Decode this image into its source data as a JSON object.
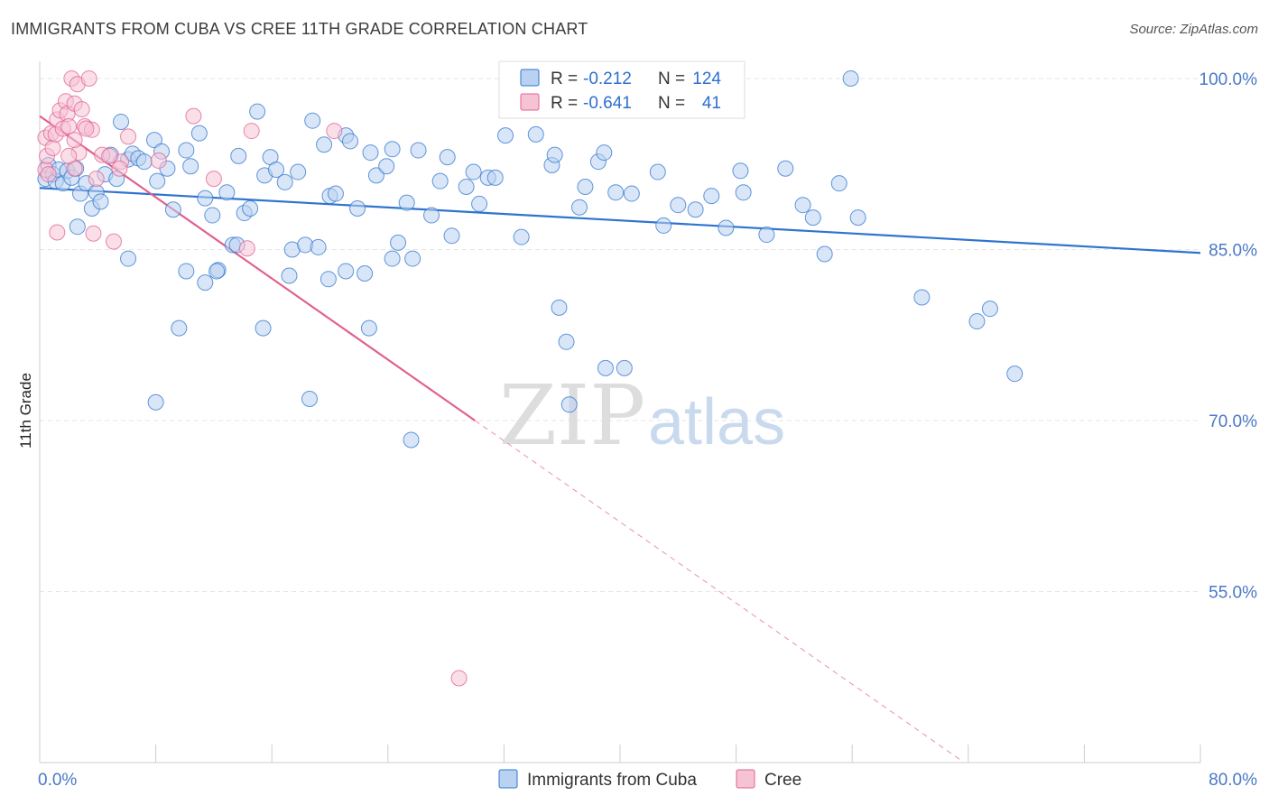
{
  "title": "IMMIGRANTS FROM CUBA VS CREE 11TH GRADE CORRELATION CHART",
  "source": "Source: ZipAtlas.com",
  "watermark": {
    "part1": "ZIP",
    "part2": "atlas"
  },
  "colors": {
    "blue": "#2f74d0",
    "blue_fill": "#b9d2f1",
    "pink": "#e2608f",
    "pink_fill": "#f6c3d5",
    "tick_text": "#4a78c8",
    "grid": "#e6e6e6"
  },
  "chart_data": {
    "type": "scatter",
    "title": "IMMIGRANTS FROM CUBA VS CREE 11TH GRADE CORRELATION CHART",
    "xlabel": "",
    "ylabel": "11th Grade",
    "xlim": [
      0,
      80
    ],
    "ylim": [
      40,
      101.5
    ],
    "x_ticks": [
      "0.0%",
      "80.0%"
    ],
    "y_ticks": [
      {
        "value": 100,
        "label": "100.0%"
      },
      {
        "value": 85,
        "label": "85.0%"
      },
      {
        "value": 70,
        "label": "70.0%"
      },
      {
        "value": 55,
        "label": "55.0%"
      }
    ],
    "grid": true,
    "legend": {
      "placement": "top-center",
      "entries": [
        {
          "r_label": "R =",
          "r": "-0.212",
          "n_label": "N =",
          "n": "124"
        },
        {
          "r_label": "R =",
          "r": "-0.641",
          "n_label": "N =",
          "n": "41"
        }
      ]
    },
    "series": [
      {
        "name": "Immigrants from Cuba",
        "color": "#2f74d0",
        "r": -0.212,
        "n": 124,
        "trend": {
          "x": [
            0,
            80
          ],
          "y": [
            90.4,
            84.7
          ]
        },
        "points": [
          [
            0.4,
            91.2
          ],
          [
            0.6,
            92.4
          ],
          [
            0.9,
            91.6
          ],
          [
            1.1,
            91.0
          ],
          [
            1.3,
            92.0
          ],
          [
            1.6,
            90.8
          ],
          [
            1.9,
            91.9
          ],
          [
            2.2,
            91.3
          ],
          [
            2.5,
            92.1
          ],
          [
            2.8,
            89.9
          ],
          [
            3.2,
            90.8
          ],
          [
            3.6,
            88.6
          ],
          [
            3.9,
            90.0
          ],
          [
            4.2,
            89.2
          ],
          [
            2.6,
            87.0
          ],
          [
            4.5,
            91.6
          ],
          [
            4.9,
            93.3
          ],
          [
            5.3,
            91.2
          ],
          [
            5.6,
            96.2
          ],
          [
            6.1,
            92.9
          ],
          [
            6.4,
            93.4
          ],
          [
            6.8,
            93.0
          ],
          [
            7.2,
            92.7
          ],
          [
            7.9,
            94.6
          ],
          [
            8.1,
            91.0
          ],
          [
            8.4,
            93.6
          ],
          [
            8.8,
            92.1
          ],
          [
            9.2,
            88.5
          ],
          [
            10.1,
            93.7
          ],
          [
            10.4,
            92.3
          ],
          [
            11.0,
            95.2
          ],
          [
            11.4,
            89.5
          ],
          [
            11.9,
            88.0
          ],
          [
            12.3,
            83.2
          ],
          [
            12.9,
            90.0
          ],
          [
            13.3,
            85.4
          ],
          [
            13.7,
            93.2
          ],
          [
            14.1,
            88.2
          ],
          [
            14.5,
            88.6
          ],
          [
            15.0,
            97.1
          ],
          [
            15.5,
            91.5
          ],
          [
            15.9,
            93.1
          ],
          [
            16.3,
            92.0
          ],
          [
            16.9,
            90.9
          ],
          [
            17.4,
            85.0
          ],
          [
            17.8,
            91.8
          ],
          [
            18.3,
            85.4
          ],
          [
            18.8,
            96.3
          ],
          [
            19.2,
            85.2
          ],
          [
            19.6,
            94.2
          ],
          [
            20.0,
            89.7
          ],
          [
            20.4,
            89.9
          ],
          [
            21.1,
            95.0
          ],
          [
            21.4,
            94.5
          ],
          [
            21.9,
            88.6
          ],
          [
            22.4,
            82.9
          ],
          [
            22.8,
            93.5
          ],
          [
            23.2,
            91.5
          ],
          [
            23.9,
            92.3
          ],
          [
            24.3,
            93.8
          ],
          [
            24.7,
            85.6
          ],
          [
            25.3,
            89.1
          ],
          [
            25.7,
            84.2
          ],
          [
            26.1,
            93.7
          ],
          [
            27.0,
            88.0
          ],
          [
            27.6,
            91.0
          ],
          [
            28.1,
            93.1
          ],
          [
            28.4,
            86.2
          ],
          [
            29.4,
            90.5
          ],
          [
            29.9,
            91.8
          ],
          [
            30.3,
            89.0
          ],
          [
            30.9,
            91.3
          ],
          [
            31.4,
            91.3
          ],
          [
            32.1,
            95.0
          ],
          [
            33.2,
            86.1
          ],
          [
            34.2,
            95.1
          ],
          [
            35.3,
            92.4
          ],
          [
            35.5,
            93.3
          ],
          [
            35.8,
            79.9
          ],
          [
            36.3,
            76.9
          ],
          [
            37.2,
            88.7
          ],
          [
            37.6,
            90.5
          ],
          [
            38.5,
            92.7
          ],
          [
            38.9,
            93.5
          ],
          [
            39.0,
            74.6
          ],
          [
            39.7,
            90.0
          ],
          [
            40.8,
            89.9
          ],
          [
            42.6,
            91.8
          ],
          [
            43.0,
            87.1
          ],
          [
            44.0,
            88.9
          ],
          [
            45.2,
            88.5
          ],
          [
            46.3,
            89.7
          ],
          [
            47.3,
            86.9
          ],
          [
            48.3,
            91.9
          ],
          [
            48.5,
            90.0
          ],
          [
            50.1,
            86.3
          ],
          [
            51.4,
            92.1
          ],
          [
            52.6,
            88.9
          ],
          [
            53.3,
            87.8
          ],
          [
            54.1,
            84.6
          ],
          [
            55.1,
            90.8
          ],
          [
            55.9,
            100.0
          ],
          [
            56.4,
            87.8
          ],
          [
            60.8,
            80.8
          ],
          [
            64.6,
            78.7
          ],
          [
            65.5,
            79.8
          ],
          [
            67.2,
            74.1
          ],
          [
            6.1,
            84.2
          ],
          [
            8.0,
            71.6
          ],
          [
            9.6,
            78.1
          ],
          [
            10.1,
            83.1
          ],
          [
            11.4,
            82.1
          ],
          [
            12.2,
            83.1
          ],
          [
            13.6,
            85.4
          ],
          [
            15.4,
            78.1
          ],
          [
            17.2,
            82.7
          ],
          [
            18.6,
            71.9
          ],
          [
            19.9,
            82.4
          ],
          [
            21.1,
            83.1
          ],
          [
            22.7,
            78.1
          ],
          [
            24.3,
            84.2
          ],
          [
            25.6,
            68.3
          ],
          [
            36.5,
            71.4
          ],
          [
            40.3,
            74.6
          ]
        ]
      },
      {
        "name": "Cree",
        "color": "#e2608f",
        "r": -0.641,
        "n": 41,
        "trend": {
          "x": [
            0,
            30
          ],
          "y": [
            96.7,
            70.0
          ]
        },
        "trend_extension": {
          "x": [
            30,
            63.5
          ],
          "y": [
            70.0,
            40.2
          ]
        },
        "points": [
          [
            0.4,
            94.8
          ],
          [
            0.4,
            92.0
          ],
          [
            0.5,
            93.2
          ],
          [
            0.6,
            91.6
          ],
          [
            0.8,
            95.2
          ],
          [
            0.9,
            93.9
          ],
          [
            1.1,
            95.1
          ],
          [
            1.2,
            96.4
          ],
          [
            1.4,
            97.2
          ],
          [
            1.6,
            95.6
          ],
          [
            1.8,
            98.0
          ],
          [
            1.9,
            96.9
          ],
          [
            2.0,
            95.8
          ],
          [
            2.2,
            100.0
          ],
          [
            2.4,
            97.8
          ],
          [
            2.6,
            99.5
          ],
          [
            2.9,
            97.3
          ],
          [
            3.1,
            95.8
          ],
          [
            3.4,
            100.0
          ],
          [
            3.6,
            95.5
          ],
          [
            2.4,
            92.1
          ],
          [
            2.7,
            93.5
          ],
          [
            3.9,
            91.2
          ],
          [
            4.3,
            93.3
          ],
          [
            5.6,
            92.7
          ],
          [
            4.8,
            93.2
          ],
          [
            5.5,
            92.1
          ],
          [
            8.2,
            92.8
          ],
          [
            10.6,
            96.7
          ],
          [
            12.0,
            91.2
          ],
          [
            14.3,
            85.1
          ],
          [
            14.6,
            95.4
          ],
          [
            20.3,
            95.4
          ],
          [
            2.4,
            94.6
          ],
          [
            1.2,
            86.5
          ],
          [
            3.7,
            86.4
          ],
          [
            5.1,
            85.7
          ],
          [
            2.0,
            93.2
          ],
          [
            6.1,
            94.9
          ],
          [
            3.2,
            95.6
          ],
          [
            28.9,
            47.4
          ]
        ]
      }
    ],
    "bottom_legend": [
      "Immigrants from Cuba",
      "Cree"
    ]
  }
}
